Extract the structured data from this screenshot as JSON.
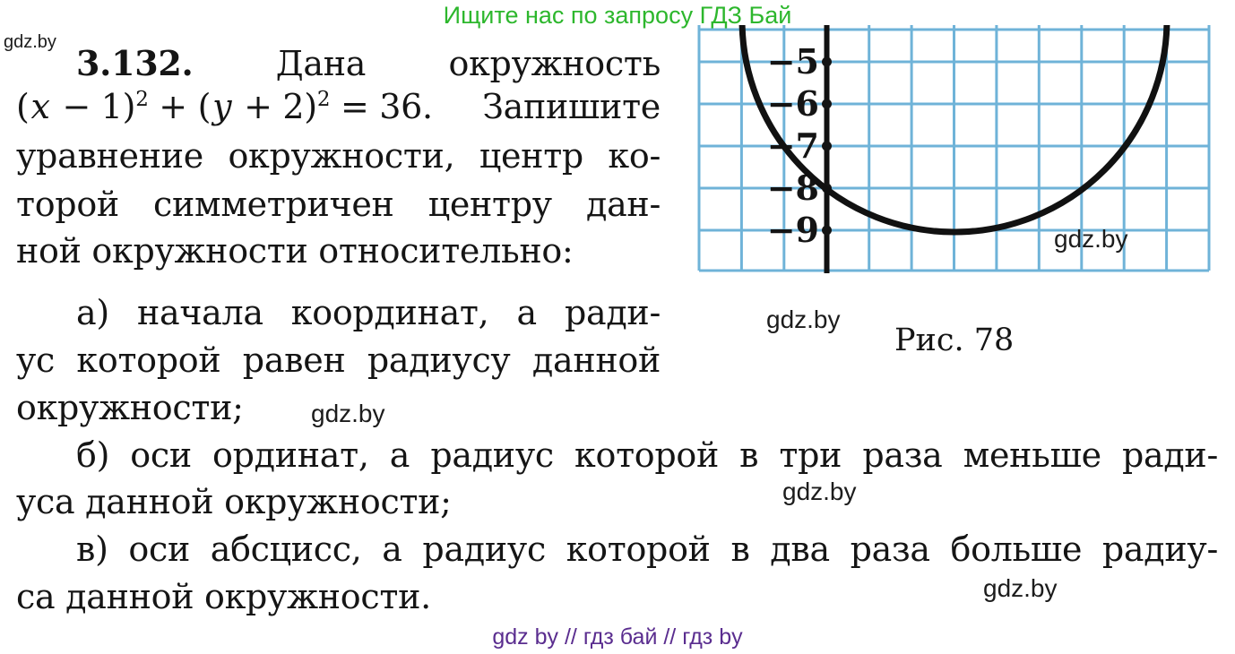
{
  "promo_banner": {
    "text": "Ищите нас по запросу ГДЗ Бай",
    "color": "#2db72d"
  },
  "watermarks": {
    "top_left": "gdz.by",
    "inline_after_part_a": "gdz.by",
    "inline_after_part_b": "gdz.by",
    "inline_after_part_v": "gdz.by",
    "figure_inner": "gdz.by",
    "figure_caption_side": "gdz.by"
  },
  "problem": {
    "number": "3.132.",
    "intro_words": [
      "Дана",
      "окружность"
    ],
    "math": {
      "segments": [
        {
          "t": "(",
          "s": "n"
        },
        {
          "t": "x",
          "s": "i"
        },
        {
          "t": " − 1)",
          "s": "n"
        },
        {
          "t": "2",
          "s": "u"
        },
        {
          "t": " + (",
          "s": "n"
        },
        {
          "t": "y",
          "s": "i"
        },
        {
          "t": " + 2)",
          "s": "n"
        },
        {
          "t": "2",
          "s": "u"
        },
        {
          "t": " = 36.",
          "s": "n"
        }
      ],
      "tail": "Запишите"
    },
    "lines": {
      "l3": "уравнение окружности, центр ко-",
      "l4": "торой симметричен центру дан-",
      "l5": "ной окружности относительно:",
      "a1": "а) начала координат, а ради-",
      "a2": "ус которой равен радиусу данной",
      "a3": "окружности;",
      "b1": "б) оси ординат, а радиус которой в три раза меньше ради-",
      "b2": "уса данной окружности;",
      "v1": "в) оси абсцисс, а радиус которой в два раза больше радиу-",
      "v2": "са данной окружности."
    }
  },
  "figure": {
    "caption": "Рис. 78",
    "y_axis_labels": [
      "−5",
      "−6",
      "−7",
      "−8",
      "−9"
    ],
    "grid_color": "#6fb3d8",
    "axis_color": "#111111",
    "curve_color": "#111111"
  },
  "footer": {
    "text": "gdz by  //  гдз бай  //  гдз by",
    "color": "#5a2d8f"
  }
}
